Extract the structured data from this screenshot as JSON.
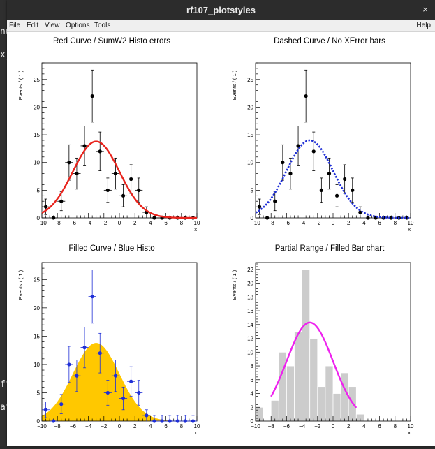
{
  "window": {
    "title": "rf107_plotstyles",
    "close_glyph": "×"
  },
  "terminal": {
    "fragments": [
      "nu",
      "x_",
      "ff",
      "at"
    ]
  },
  "menu": {
    "items": [
      "File",
      "Edit",
      "View",
      "Options",
      "Tools"
    ],
    "help": "Help"
  },
  "panels": [
    {
      "title": "Red Curve / SumW2 Histo errors",
      "ylabel": "Events / ( 1 )",
      "xlabel": "x",
      "style": "red-curve"
    },
    {
      "title": "Dashed Curve / No XError bars",
      "ylabel": "Events / ( 1 )",
      "xlabel": "x",
      "style": "dashed-curve"
    },
    {
      "title": "Filled Curve / Blue Histo",
      "ylabel": "Events / ( 1 )",
      "xlabel": "x",
      "style": "filled-curve"
    },
    {
      "title": "Partial Range / Filled Bar chart",
      "ylabel": "Events / ( 1 )",
      "xlabel": "x",
      "style": "bar-chart"
    }
  ],
  "chart_data": [
    {
      "type": "scatter",
      "title": "Red Curve / SumW2 Histo errors",
      "xlabel": "x",
      "ylabel": "Events / ( 1 )",
      "xlim": [
        -10,
        10
      ],
      "ylim": [
        0,
        28
      ],
      "x_ticks": [
        -10,
        -8,
        -6,
        -4,
        -2,
        0,
        2,
        4,
        6,
        8,
        10
      ],
      "y_ticks": [
        0,
        5,
        10,
        15,
        20,
        25
      ],
      "x": [
        -9.5,
        -8.5,
        -7.5,
        -6.5,
        -5.5,
        -4.5,
        -3.5,
        -2.5,
        -1.5,
        -0.5,
        0.5,
        1.5,
        2.5,
        3.5,
        4.5,
        5.5,
        6.5,
        7.5,
        8.5,
        9.5
      ],
      "values": [
        2,
        0,
        3,
        10,
        8,
        13,
        22,
        12,
        5,
        8,
        4,
        7,
        5,
        1,
        0,
        0,
        0,
        0,
        0,
        0
      ],
      "errors": [
        1.4,
        0,
        1.7,
        3.2,
        2.8,
        3.6,
        4.7,
        3.5,
        2.2,
        2.8,
        2,
        2.6,
        2.2,
        1,
        0,
        0,
        0,
        0,
        0,
        0
      ],
      "curve": {
        "peak": 13.8,
        "mean": -3,
        "sigma": 3,
        "color": "#e8231c",
        "style": "solid"
      }
    },
    {
      "type": "scatter",
      "title": "Dashed Curve / No XError bars",
      "xlabel": "x",
      "ylabel": "Events / ( 1 )",
      "xlim": [
        -10,
        10
      ],
      "ylim": [
        0,
        28
      ],
      "x_ticks": [
        -10,
        -8,
        -6,
        -4,
        -2,
        0,
        2,
        4,
        6,
        8,
        10
      ],
      "y_ticks": [
        0,
        5,
        10,
        15,
        20,
        25
      ],
      "x": [
        -9.5,
        -8.5,
        -7.5,
        -6.5,
        -5.5,
        -4.5,
        -3.5,
        -2.5,
        -1.5,
        -0.5,
        0.5,
        1.5,
        2.5,
        3.5,
        4.5,
        5.5,
        6.5,
        7.5,
        8.5,
        9.5
      ],
      "values": [
        2,
        0,
        3,
        10,
        8,
        13,
        22,
        12,
        5,
        8,
        4,
        7,
        5,
        1,
        0,
        0,
        0,
        0,
        0,
        0
      ],
      "errors": [
        1.4,
        0,
        1.7,
        3.2,
        2.8,
        3.6,
        4.7,
        3.5,
        2.2,
        2.8,
        2,
        2.6,
        2.2,
        1,
        0,
        0,
        0,
        0,
        0,
        0
      ],
      "curve": {
        "peak": 14,
        "mean": -3,
        "sigma": 3,
        "color": "#1f2fd6",
        "style": "dashed"
      }
    },
    {
      "type": "area",
      "title": "Filled Curve / Blue Histo",
      "xlabel": "x",
      "ylabel": "Events / ( 1 )",
      "xlim": [
        -10,
        10
      ],
      "ylim": [
        0,
        28
      ],
      "x_ticks": [
        -10,
        -8,
        -6,
        -4,
        -2,
        0,
        2,
        4,
        6,
        8,
        10
      ],
      "y_ticks": [
        0,
        5,
        10,
        15,
        20,
        25
      ],
      "x": [
        -9.5,
        -8.5,
        -7.5,
        -6.5,
        -5.5,
        -4.5,
        -3.5,
        -2.5,
        -1.5,
        -0.5,
        0.5,
        1.5,
        2.5,
        3.5,
        4.5,
        5.5,
        6.5,
        7.5,
        8.5,
        9.5
      ],
      "values": [
        2,
        0,
        3,
        10,
        8,
        13,
        22,
        12,
        5,
        8,
        4,
        7,
        5,
        1,
        0,
        0,
        0,
        0,
        0,
        0
      ],
      "errors": [
        1.4,
        0,
        1.7,
        3.2,
        2.8,
        3.6,
        4.7,
        3.5,
        2.2,
        2.8,
        2,
        2.6,
        2.2,
        1,
        1,
        1,
        1,
        1,
        1,
        1
      ],
      "point_color": "#1f2fd6",
      "curve": {
        "peak": 13.8,
        "mean": -3,
        "sigma": 3,
        "color": "#ffc800",
        "style": "filled"
      }
    },
    {
      "type": "bar",
      "title": "Partial Range / Filled Bar chart",
      "xlabel": "x",
      "ylabel": "Events / ( 1 )",
      "xlim": [
        -10,
        10
      ],
      "ylim": [
        0,
        23
      ],
      "x_ticks": [
        -10,
        -8,
        -6,
        -4,
        -2,
        0,
        2,
        4,
        6,
        8,
        10
      ],
      "y_ticks": [
        0,
        2,
        4,
        6,
        8,
        10,
        12,
        14,
        16,
        18,
        20,
        22
      ],
      "x": [
        -9.5,
        -8.5,
        -7.5,
        -6.5,
        -5.5,
        -4.5,
        -3.5,
        -2.5,
        -1.5,
        -0.5,
        0.5,
        1.5,
        2.5,
        3.5,
        4.5,
        5.5,
        6.5,
        7.5,
        8.5,
        9.5
      ],
      "values": [
        2,
        0,
        3,
        10,
        8,
        13,
        22,
        12,
        5,
        8,
        4,
        7,
        5,
        1,
        0,
        0,
        0,
        0,
        0,
        0
      ],
      "bar_color": "#cccccc",
      "curve": {
        "peak": 14.3,
        "mean": -3,
        "sigma": 3,
        "color": "#ee22ee",
        "style": "solid",
        "range": [
          -8,
          3
        ]
      }
    }
  ]
}
